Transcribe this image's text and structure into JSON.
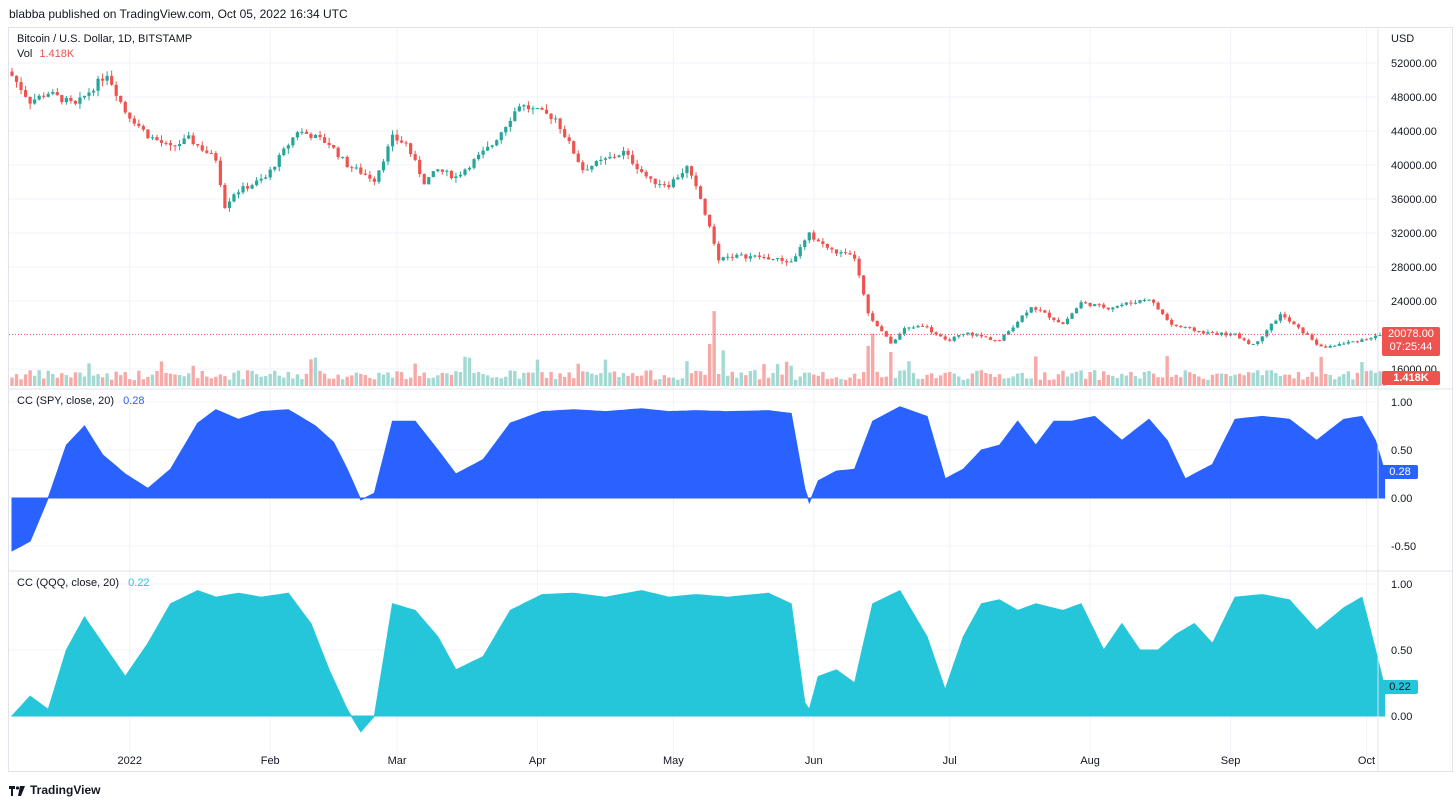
{
  "header": {
    "published": "blabba published on TradingView.com, Oct 05, 2022 16:34 UTC",
    "symbol": "Bitcoin / U.S. Dollar, 1D, BITSTAMP",
    "vol_label": "Vol",
    "vol_value": "1.418K",
    "currency": "USD"
  },
  "colors": {
    "up": "#26a69a",
    "down": "#ef5350",
    "vol_up": "#a3d9d3",
    "vol_down": "#f7a9a7",
    "spy_fill": "#2962ff",
    "qqq_fill": "#26c6da",
    "grid": "#f0f3fa"
  },
  "price_badge": {
    "price": "20078.00",
    "countdown": "07:25:44"
  },
  "volume_badge": "1.418K",
  "spy_legend": {
    "label": "CC (SPY, close, 20)",
    "value": "0.28"
  },
  "qqq_legend": {
    "label": "CC (QQQ, close, 20)",
    "value": "0.22"
  },
  "footer": {
    "brand": "TradingView"
  },
  "chart_data": [
    {
      "type": "candlestick",
      "title": "Bitcoin / U.S. Dollar, 1D, BITSTAMP",
      "ylabel": "USD",
      "ylim": [
        14000,
        54000
      ],
      "y_ticks": [
        "52000.00",
        "48000.00",
        "44000.00",
        "40000.00",
        "36000.00",
        "32000.00",
        "28000.00",
        "24000.00",
        "16000.00"
      ],
      "x_ticks": [
        "2022",
        "Feb",
        "Mar",
        "Apr",
        "May",
        "Jun",
        "Jul",
        "Aug",
        "Sep",
        "Oct"
      ],
      "last_price": 20078,
      "close_keypoints": [
        [
          "2021-12-06",
          50500
        ],
        [
          "2021-12-10",
          47500
        ],
        [
          "2021-12-14",
          48500
        ],
        [
          "2021-12-20",
          47000
        ],
        [
          "2021-12-27",
          50800
        ],
        [
          "2021-12-31",
          46300
        ],
        [
          "2022-01-05",
          43500
        ],
        [
          "2022-01-10",
          42000
        ],
        [
          "2022-01-14",
          43100
        ],
        [
          "2022-01-20",
          40700
        ],
        [
          "2022-01-22",
          35200
        ],
        [
          "2022-01-24",
          36700
        ],
        [
          "2022-01-31",
          38500
        ],
        [
          "2022-02-07",
          44000
        ],
        [
          "2022-02-10",
          43500
        ],
        [
          "2022-02-14",
          42500
        ],
        [
          "2022-02-18",
          40000
        ],
        [
          "2022-02-24",
          38300
        ],
        [
          "2022-02-28",
          43200
        ],
        [
          "2022-03-03",
          42500
        ],
        [
          "2022-03-07",
          38000
        ],
        [
          "2022-03-10",
          39400
        ],
        [
          "2022-03-14",
          38600
        ],
        [
          "2022-03-22",
          42400
        ],
        [
          "2022-03-28",
          47100
        ],
        [
          "2022-04-01",
          46300
        ],
        [
          "2022-04-05",
          45500
        ],
        [
          "2022-04-11",
          39500
        ],
        [
          "2022-04-20",
          41500
        ],
        [
          "2022-04-26",
          38100
        ],
        [
          "2022-04-30",
          37700
        ],
        [
          "2022-05-04",
          39700
        ],
        [
          "2022-05-07",
          36000
        ],
        [
          "2022-05-11",
          29000
        ],
        [
          "2022-05-14",
          29300
        ],
        [
          "2022-05-20",
          29200
        ],
        [
          "2022-05-27",
          28600
        ],
        [
          "2022-05-31",
          31800
        ],
        [
          "2022-06-05",
          29900
        ],
        [
          "2022-06-10",
          29100
        ],
        [
          "2022-06-13",
          22400
        ],
        [
          "2022-06-18",
          19000
        ],
        [
          "2022-06-21",
          20700
        ],
        [
          "2022-06-25",
          21200
        ],
        [
          "2022-06-30",
          19300
        ],
        [
          "2022-07-05",
          20200
        ],
        [
          "2022-07-12",
          19300
        ],
        [
          "2022-07-19",
          23400
        ],
        [
          "2022-07-26",
          21300
        ],
        [
          "2022-07-30",
          23800
        ],
        [
          "2022-08-05",
          23200
        ],
        [
          "2022-08-14",
          24300
        ],
        [
          "2022-08-19",
          21200
        ],
        [
          "2022-08-26",
          20300
        ],
        [
          "2022-09-02",
          20000
        ],
        [
          "2022-09-06",
          18800
        ],
        [
          "2022-09-12",
          22400
        ],
        [
          "2022-09-19",
          19500
        ],
        [
          "2022-09-21",
          18500
        ],
        [
          "2022-09-27",
          19100
        ],
        [
          "2022-10-05",
          20078
        ]
      ]
    },
    {
      "type": "area",
      "title": "CC (SPY, close, 20)",
      "ylim": [
        -0.6,
        1.05
      ],
      "y_ticks": [
        "1.00",
        "0.50",
        "0.00",
        "-0.50"
      ],
      "last_value": 0.28,
      "keypoints": [
        [
          "2021-12-06",
          -0.55
        ],
        [
          "2021-12-10",
          -0.45
        ],
        [
          "2021-12-14",
          0.0
        ],
        [
          "2021-12-18",
          0.55
        ],
        [
          "2021-12-22",
          0.75
        ],
        [
          "2021-12-26",
          0.45
        ],
        [
          "2021-12-31",
          0.25
        ],
        [
          "2022-01-05",
          0.1
        ],
        [
          "2022-01-10",
          0.3
        ],
        [
          "2022-01-16",
          0.78
        ],
        [
          "2022-01-20",
          0.92
        ],
        [
          "2022-01-25",
          0.82
        ],
        [
          "2022-01-30",
          0.9
        ],
        [
          "2022-02-05",
          0.92
        ],
        [
          "2022-02-11",
          0.75
        ],
        [
          "2022-02-15",
          0.58
        ],
        [
          "2022-02-18",
          0.3
        ],
        [
          "2022-02-21",
          -0.02
        ],
        [
          "2022-02-24",
          0.05
        ],
        [
          "2022-02-28",
          0.8
        ],
        [
          "2022-03-05",
          0.8
        ],
        [
          "2022-03-10",
          0.5
        ],
        [
          "2022-03-14",
          0.25
        ],
        [
          "2022-03-20",
          0.4
        ],
        [
          "2022-03-26",
          0.78
        ],
        [
          "2022-04-02",
          0.9
        ],
        [
          "2022-04-09",
          0.92
        ],
        [
          "2022-04-16",
          0.9
        ],
        [
          "2022-04-24",
          0.93
        ],
        [
          "2022-04-30",
          0.9
        ],
        [
          "2022-05-06",
          0.91
        ],
        [
          "2022-05-13",
          0.9
        ],
        [
          "2022-05-22",
          0.91
        ],
        [
          "2022-05-27",
          0.88
        ],
        [
          "2022-05-30",
          0.1
        ],
        [
          "2022-05-31",
          -0.05
        ],
        [
          "2022-06-02",
          0.18
        ],
        [
          "2022-06-06",
          0.28
        ],
        [
          "2022-06-10",
          0.3
        ],
        [
          "2022-06-14",
          0.8
        ],
        [
          "2022-06-20",
          0.95
        ],
        [
          "2022-06-26",
          0.85
        ],
        [
          "2022-06-30",
          0.2
        ],
        [
          "2022-07-04",
          0.3
        ],
        [
          "2022-07-08",
          0.5
        ],
        [
          "2022-07-12",
          0.55
        ],
        [
          "2022-07-16",
          0.8
        ],
        [
          "2022-07-20",
          0.55
        ],
        [
          "2022-07-24",
          0.8
        ],
        [
          "2022-07-28",
          0.8
        ],
        [
          "2022-08-02",
          0.85
        ],
        [
          "2022-08-08",
          0.6
        ],
        [
          "2022-08-14",
          0.82
        ],
        [
          "2022-08-18",
          0.6
        ],
        [
          "2022-08-22",
          0.2
        ],
        [
          "2022-08-28",
          0.35
        ],
        [
          "2022-09-02",
          0.82
        ],
        [
          "2022-09-08",
          0.85
        ],
        [
          "2022-09-14",
          0.82
        ],
        [
          "2022-09-20",
          0.6
        ],
        [
          "2022-09-26",
          0.82
        ],
        [
          "2022-09-30",
          0.85
        ],
        [
          "2022-10-03",
          0.6
        ],
        [
          "2022-10-05",
          0.28
        ]
      ]
    },
    {
      "type": "area",
      "title": "CC (QQQ, close, 20)",
      "ylim": [
        -0.12,
        1.02
      ],
      "y_ticks": [
        "1.00",
        "0.50",
        "0.00"
      ],
      "last_value": 0.22,
      "keypoints": [
        [
          "2021-12-06",
          0.0
        ],
        [
          "2021-12-10",
          0.15
        ],
        [
          "2021-12-14",
          0.05
        ],
        [
          "2021-12-18",
          0.5
        ],
        [
          "2021-12-22",
          0.75
        ],
        [
          "2021-12-26",
          0.55
        ],
        [
          "2021-12-31",
          0.3
        ],
        [
          "2022-01-05",
          0.55
        ],
        [
          "2022-01-10",
          0.85
        ],
        [
          "2022-01-16",
          0.95
        ],
        [
          "2022-01-20",
          0.9
        ],
        [
          "2022-01-25",
          0.93
        ],
        [
          "2022-01-30",
          0.9
        ],
        [
          "2022-02-05",
          0.93
        ],
        [
          "2022-02-10",
          0.7
        ],
        [
          "2022-02-14",
          0.35
        ],
        [
          "2022-02-18",
          0.05
        ],
        [
          "2022-02-21",
          -0.12
        ],
        [
          "2022-02-24",
          0.0
        ],
        [
          "2022-02-28",
          0.85
        ],
        [
          "2022-03-05",
          0.8
        ],
        [
          "2022-03-10",
          0.6
        ],
        [
          "2022-03-14",
          0.35
        ],
        [
          "2022-03-20",
          0.45
        ],
        [
          "2022-03-26",
          0.8
        ],
        [
          "2022-04-02",
          0.92
        ],
        [
          "2022-04-09",
          0.93
        ],
        [
          "2022-04-16",
          0.9
        ],
        [
          "2022-04-24",
          0.95
        ],
        [
          "2022-04-30",
          0.9
        ],
        [
          "2022-05-06",
          0.92
        ],
        [
          "2022-05-13",
          0.9
        ],
        [
          "2022-05-22",
          0.93
        ],
        [
          "2022-05-27",
          0.85
        ],
        [
          "2022-05-30",
          0.1
        ],
        [
          "2022-05-31",
          0.05
        ],
        [
          "2022-06-02",
          0.3
        ],
        [
          "2022-06-06",
          0.35
        ],
        [
          "2022-06-10",
          0.25
        ],
        [
          "2022-06-14",
          0.85
        ],
        [
          "2022-06-20",
          0.95
        ],
        [
          "2022-06-26",
          0.6
        ],
        [
          "2022-06-30",
          0.2
        ],
        [
          "2022-07-04",
          0.6
        ],
        [
          "2022-07-08",
          0.85
        ],
        [
          "2022-07-12",
          0.88
        ],
        [
          "2022-07-16",
          0.8
        ],
        [
          "2022-07-20",
          0.85
        ],
        [
          "2022-07-26",
          0.8
        ],
        [
          "2022-07-30",
          0.85
        ],
        [
          "2022-08-04",
          0.5
        ],
        [
          "2022-08-08",
          0.7
        ],
        [
          "2022-08-12",
          0.5
        ],
        [
          "2022-08-16",
          0.5
        ],
        [
          "2022-08-20",
          0.62
        ],
        [
          "2022-08-24",
          0.7
        ],
        [
          "2022-08-28",
          0.55
        ],
        [
          "2022-09-02",
          0.9
        ],
        [
          "2022-09-08",
          0.92
        ],
        [
          "2022-09-14",
          0.88
        ],
        [
          "2022-09-20",
          0.65
        ],
        [
          "2022-09-26",
          0.82
        ],
        [
          "2022-09-30",
          0.9
        ],
        [
          "2022-10-03",
          0.5
        ],
        [
          "2022-10-05",
          0.22
        ]
      ]
    }
  ]
}
